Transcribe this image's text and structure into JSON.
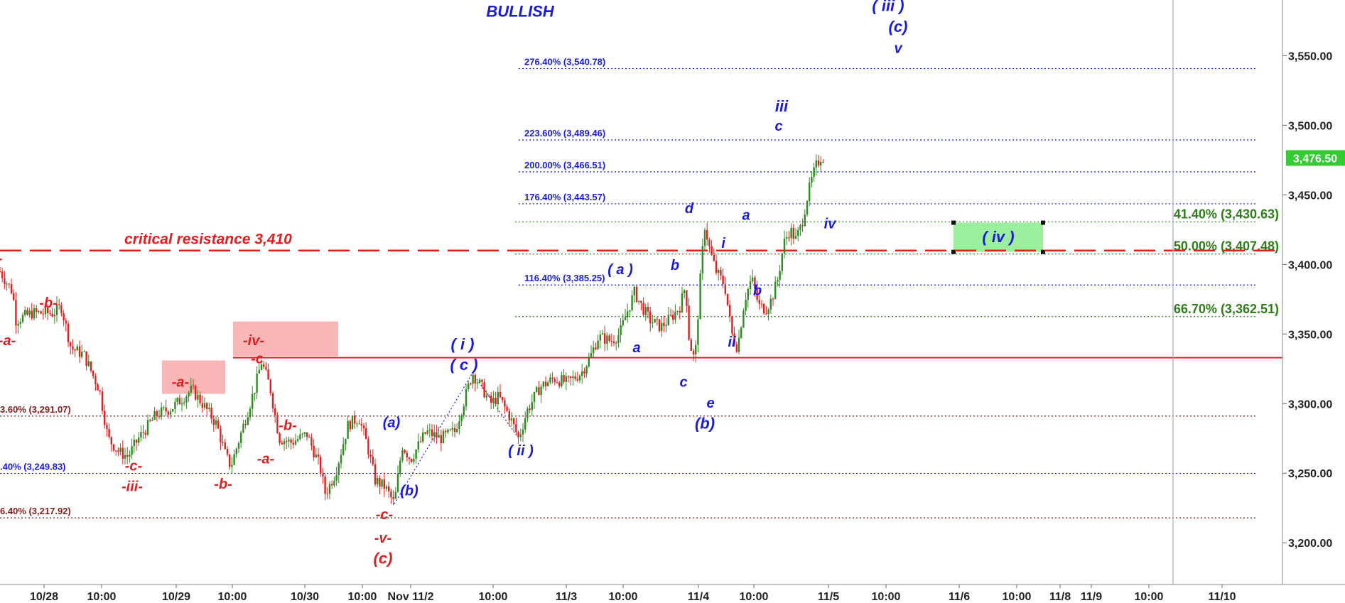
{
  "chart_data": {
    "type": "candlestick",
    "colors": {
      "up": "#2e8b22",
      "down": "#e02020",
      "blue": "#1a1adc",
      "red": "#e02020",
      "green": "#2e7d1a",
      "maroon": "#8b1a1a",
      "price_tag": "#33cc33",
      "zone": "#9cef9c",
      "box": "#f7a9a9"
    },
    "title": "BULLISH",
    "y_range": [
      3170,
      3590
    ],
    "y_ticks": [
      {
        "v": 3200,
        "label": "3,200.00"
      },
      {
        "v": 3250,
        "label": "3,250.00"
      },
      {
        "v": 3300,
        "label": "3,300.00"
      },
      {
        "v": 3350,
        "label": "3,350.00"
      },
      {
        "v": 3400,
        "label": "3,400.00"
      },
      {
        "v": 3450,
        "label": "3,450.00"
      },
      {
        "v": 3500,
        "label": "3,500.00"
      },
      {
        "v": 3550,
        "label": "3,550.00"
      }
    ],
    "x_range": [
      0,
      1805
    ],
    "x_ticks": [
      {
        "t": 62,
        "label": "10/28"
      },
      {
        "t": 143,
        "label": "10:00"
      },
      {
        "t": 248,
        "label": "10/29"
      },
      {
        "t": 327,
        "label": "10:00"
      },
      {
        "t": 429,
        "label": "10/30"
      },
      {
        "t": 510,
        "label": "10:00"
      },
      {
        "t": 578,
        "label": "Nov 11/2"
      },
      {
        "t": 694,
        "label": "10:00"
      },
      {
        "t": 797,
        "label": "11/3"
      },
      {
        "t": 877,
        "label": "10:00"
      },
      {
        "t": 983,
        "label": "11/4"
      },
      {
        "t": 1061,
        "label": "10:00"
      },
      {
        "t": 1166,
        "label": "11/5"
      },
      {
        "t": 1247,
        "label": "10:00"
      },
      {
        "t": 1350,
        "label": "11/6"
      },
      {
        "t": 1431,
        "label": "10:00"
      },
      {
        "t": 1492,
        "label": "11/8"
      },
      {
        "t": 1536,
        "label": "11/9"
      },
      {
        "t": 1617,
        "label": "10:00"
      },
      {
        "t": 1720,
        "label": "11/10"
      }
    ],
    "last_price": {
      "v": 3476.5,
      "label": "3,476.50"
    },
    "price_path": [
      [
        0,
        3395
      ],
      [
        18,
        3380
      ],
      [
        22,
        3360
      ],
      [
        45,
        3365
      ],
      [
        75,
        3365
      ],
      [
        86,
        3370
      ],
      [
        100,
        3340
      ],
      [
        118,
        3335
      ],
      [
        140,
        3310
      ],
      [
        152,
        3275
      ],
      [
        168,
        3265
      ],
      [
        180,
        3262
      ],
      [
        195,
        3275
      ],
      [
        220,
        3292
      ],
      [
        242,
        3297
      ],
      [
        270,
        3310
      ],
      [
        285,
        3300
      ],
      [
        305,
        3285
      ],
      [
        318,
        3262
      ],
      [
        325,
        3255
      ],
      [
        340,
        3280
      ],
      [
        358,
        3310
      ],
      [
        368,
        3330
      ],
      [
        380,
        3312
      ],
      [
        393,
        3275
      ],
      [
        410,
        3272
      ],
      [
        432,
        3278
      ],
      [
        450,
        3255
      ],
      [
        458,
        3235
      ],
      [
        472,
        3250
      ],
      [
        490,
        3285
      ],
      [
        505,
        3290
      ],
      [
        517,
        3270
      ],
      [
        528,
        3245
      ],
      [
        542,
        3240
      ],
      [
        555,
        3228
      ],
      [
        566,
        3270
      ],
      [
        578,
        3260
      ],
      [
        600,
        3280
      ],
      [
        620,
        3275
      ],
      [
        640,
        3280
      ],
      [
        652,
        3300
      ],
      [
        665,
        3322
      ],
      [
        680,
        3310
      ],
      [
        690,
        3300
      ],
      [
        702,
        3305
      ],
      [
        718,
        3290
      ],
      [
        730,
        3275
      ],
      [
        742,
        3295
      ],
      [
        760,
        3312
      ],
      [
        780,
        3318
      ],
      [
        798,
        3315
      ],
      [
        818,
        3322
      ],
      [
        832,
        3335
      ],
      [
        842,
        3348
      ],
      [
        860,
        3345
      ],
      [
        872,
        3350
      ],
      [
        882,
        3365
      ],
      [
        893,
        3380
      ],
      [
        903,
        3370
      ],
      [
        915,
        3360
      ],
      [
        930,
        3355
      ],
      [
        945,
        3362
      ],
      [
        957,
        3370
      ],
      [
        965,
        3385
      ],
      [
        970,
        3345
      ],
      [
        978,
        3330
      ],
      [
        987,
        3400
      ],
      [
        992,
        3428
      ],
      [
        1000,
        3408
      ],
      [
        1008,
        3395
      ],
      [
        1020,
        3385
      ],
      [
        1030,
        3350
      ],
      [
        1038,
        3340
      ],
      [
        1048,
        3375
      ],
      [
        1058,
        3390
      ],
      [
        1068,
        3370
      ],
      [
        1078,
        3368
      ],
      [
        1086,
        3375
      ],
      [
        1095,
        3390
      ],
      [
        1103,
        3415
      ],
      [
        1112,
        3425
      ],
      [
        1120,
        3418
      ],
      [
        1128,
        3428
      ],
      [
        1136,
        3448
      ],
      [
        1142,
        3460
      ],
      [
        1148,
        3470
      ],
      [
        1156,
        3478
      ],
      [
        1160,
        3476
      ]
    ],
    "fib_levels": [
      {
        "v": 3540.78,
        "label": "276.40% (3,540.78)",
        "color": "blue",
        "x0": 730,
        "x1": 1770,
        "lx": 738
      },
      {
        "v": 3489.46,
        "label": "223.60% (3,489.46)",
        "color": "blue",
        "x0": 730,
        "x1": 1770,
        "lx": 738
      },
      {
        "v": 3466.51,
        "label": "200.00% (3,466.51)",
        "color": "blue",
        "x0": 730,
        "x1": 1770,
        "lx": 738
      },
      {
        "v": 3443.57,
        "label": "176.40% (3,443.57)",
        "color": "blue",
        "x0": 730,
        "x1": 1770,
        "lx": 738
      },
      {
        "v": 3385.25,
        "label": "116.40% (3,385.25)",
        "color": "blue",
        "x0": 730,
        "x1": 1770,
        "lx": 738
      },
      {
        "v": 3291.07,
        "label": "3.60% (3,291.07)",
        "color": "maroon",
        "x0": 0,
        "x1": 1770,
        "lx": 0
      },
      {
        "v": 3249.83,
        "label": ".40% (3,249.83)",
        "color": "blue",
        "x0": 0,
        "x1": 1770,
        "lx": 0
      },
      {
        "v": 3217.92,
        "label": "6.40% (3,217.92)",
        "color": "maroon",
        "x0": 0,
        "x1": 1770,
        "lx": 0
      }
    ],
    "retracements": [
      {
        "v": 3430.63,
        "label": "41.40% (3,430.63)",
        "x0": 725,
        "x1": 1770
      },
      {
        "v": 3407.48,
        "label": "50.00% (3,407.48)",
        "x0": 725,
        "x1": 1770
      },
      {
        "v": 3362.51,
        "label": "66.70% (3,362.51)",
        "x0": 725,
        "x1": 1770
      }
    ],
    "critical": {
      "v": 3410,
      "label": "critical resistance 3,410"
    },
    "support": {
      "v": 3333
    },
    "boxes": [
      {
        "t0": 228,
        "t1": 317,
        "v0": 3331,
        "v1": 3307
      },
      {
        "t0": 328,
        "t1": 476,
        "v0": 3359,
        "v1": 3334
      }
    ],
    "zone": {
      "t0": 1342,
      "t1": 1468,
      "v0": 3430,
      "v1": 3409,
      "label": "( iv )"
    },
    "wave_labels": [
      {
        "t": 732,
        "v": 3578,
        "text": "BULLISH",
        "color": "blue",
        "size": 22,
        "italic": true
      },
      {
        "t": 1250,
        "v": 3582,
        "text": "( iii )",
        "color": "blue",
        "size": 22,
        "italic": true
      },
      {
        "t": 1264,
        "v": 3567,
        "text": "(c)",
        "color": "blue",
        "size": 22,
        "italic": true
      },
      {
        "t": 1264,
        "v": 3552,
        "text": "v",
        "color": "blue",
        "size": 20,
        "italic": true
      },
      {
        "t": 1100,
        "v": 3510,
        "text": "iii",
        "color": "blue",
        "size": 22,
        "italic": true
      },
      {
        "t": 1096,
        "v": 3496,
        "text": "c",
        "color": "blue",
        "size": 20,
        "italic": true
      },
      {
        "t": 970,
        "v": 3437,
        "text": "d",
        "color": "blue",
        "size": 20,
        "italic": true
      },
      {
        "t": 1168,
        "v": 3426,
        "text": "iv",
        "color": "blue",
        "size": 20,
        "italic": true
      },
      {
        "t": 1050,
        "v": 3432,
        "text": "a",
        "color": "blue",
        "size": 20,
        "italic": true
      },
      {
        "t": 1018,
        "v": 3412,
        "text": "i",
        "color": "blue",
        "size": 20,
        "italic": true
      },
      {
        "t": 950,
        "v": 3396,
        "text": "b",
        "color": "blue",
        "size": 20,
        "italic": true
      },
      {
        "t": 1066,
        "v": 3378,
        "text": "b",
        "color": "blue",
        "size": 20,
        "italic": true
      },
      {
        "t": 873,
        "v": 3393,
        "text": "( a )",
        "color": "blue",
        "size": 20,
        "italic": true
      },
      {
        "t": 896,
        "v": 3337,
        "text": "a",
        "color": "blue",
        "size": 20,
        "italic": true
      },
      {
        "t": 1030,
        "v": 3341,
        "text": "ii",
        "color": "blue",
        "size": 20,
        "italic": true
      },
      {
        "t": 962,
        "v": 3312,
        "text": "c",
        "color": "blue",
        "size": 20,
        "italic": true
      },
      {
        "t": 1000,
        "v": 3297,
        "text": "e",
        "color": "blue",
        "size": 20,
        "italic": true
      },
      {
        "t": 992,
        "v": 3282,
        "text": "(b)",
        "color": "blue",
        "size": 22,
        "italic": true
      },
      {
        "t": 651,
        "v": 3339,
        "text": "( i )",
        "color": "blue",
        "size": 22,
        "italic": true
      },
      {
        "t": 653,
        "v": 3324,
        "text": "( c )",
        "color": "blue",
        "size": 22,
        "italic": true
      },
      {
        "t": 733,
        "v": 3263,
        "text": "( ii )",
        "color": "blue",
        "size": 20,
        "italic": true
      },
      {
        "t": 551,
        "v": 3283,
        "text": "(a)",
        "color": "blue",
        "size": 20,
        "italic": true
      },
      {
        "t": 576,
        "v": 3234,
        "text": "(b)",
        "color": "blue",
        "size": 20,
        "italic": true
      },
      {
        "t": 0,
        "v": 3401,
        "text": "-",
        "color": "red",
        "size": 20,
        "italic": true
      },
      {
        "t": 68,
        "v": 3369,
        "text": "-b-",
        "color": "red",
        "size": 20,
        "italic": true
      },
      {
        "t": 10,
        "v": 3342,
        "text": "-a-",
        "color": "red",
        "size": 20,
        "italic": true
      },
      {
        "t": 254,
        "v": 3312,
        "text": "-a-",
        "color": "red",
        "size": 20,
        "italic": true
      },
      {
        "t": 357,
        "v": 3342,
        "text": "-iv-",
        "color": "red",
        "size": 20,
        "italic": true
      },
      {
        "t": 362,
        "v": 3329,
        "text": "-c",
        "color": "red",
        "size": 20,
        "italic": true
      },
      {
        "t": 405,
        "v": 3281,
        "text": "-b-",
        "color": "red",
        "size": 20,
        "italic": true
      },
      {
        "t": 374,
        "v": 3257,
        "text": "-a-",
        "color": "red",
        "size": 20,
        "italic": true
      },
      {
        "t": 188,
        "v": 3252,
        "text": "-c-",
        "color": "red",
        "size": 20,
        "italic": true
      },
      {
        "t": 186,
        "v": 3237,
        "text": "-iii-",
        "color": "red",
        "size": 20,
        "italic": true
      },
      {
        "t": 314,
        "v": 3239,
        "text": "-b-",
        "color": "red",
        "size": 20,
        "italic": true
      },
      {
        "t": 541,
        "v": 3217,
        "text": "-c-",
        "color": "red",
        "size": 20,
        "italic": true
      },
      {
        "t": 539,
        "v": 3200,
        "text": "-v-",
        "color": "red",
        "size": 20,
        "italic": true
      },
      {
        "t": 539,
        "v": 3185,
        "text": "(c)",
        "color": "red",
        "size": 22,
        "italic": true
      }
    ],
    "dotted_wave_path": [
      [
        555,
        3228
      ],
      [
        665,
        3322
      ],
      [
        730,
        3275
      ]
    ],
    "vertical_marker": {
      "t": 1651
    },
    "legend": "none",
    "grid": false
  }
}
